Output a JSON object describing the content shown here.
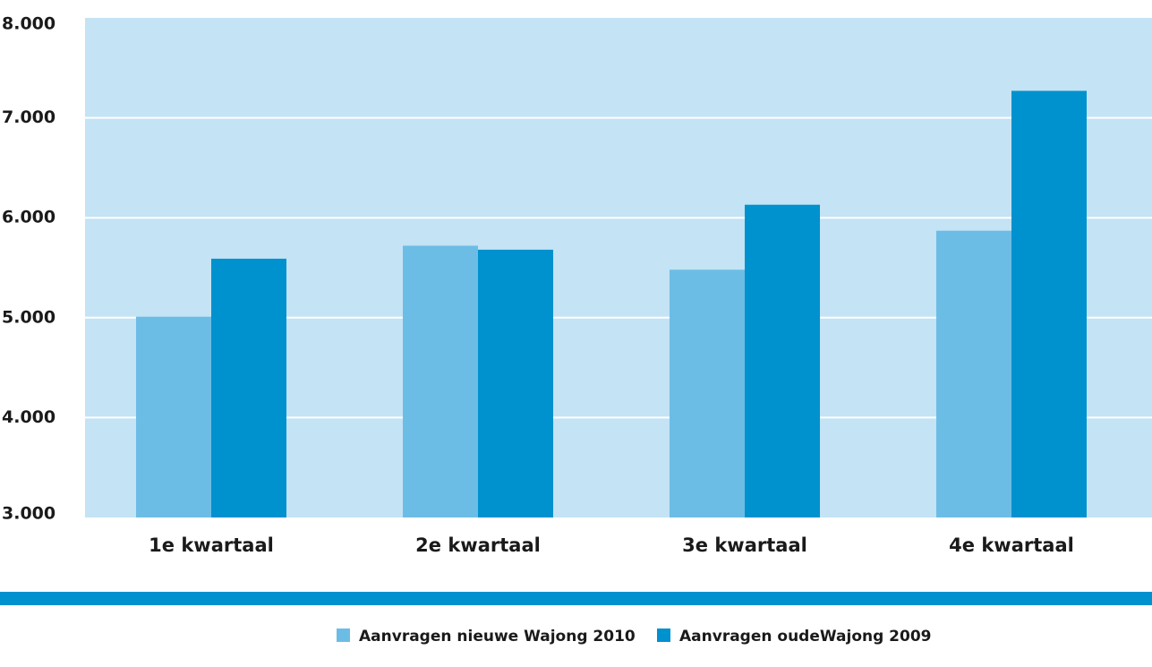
{
  "chart_data": {
    "type": "bar",
    "title": "",
    "xlabel": "",
    "ylabel": "",
    "categories": [
      "1e kwartaal",
      "2e kwartaal",
      "3e kwartaal",
      "4e kwartaal"
    ],
    "series": [
      {
        "name": "Aanvragen nieuwe Wajong 2010",
        "color": "#6cbde6",
        "values": [
          5010,
          5720,
          5480,
          5870
        ]
      },
      {
        "name": "Aanvragen oudeWajong 2009",
        "color": "#0091cf",
        "values": [
          5590,
          5680,
          6130,
          7270
        ]
      }
    ],
    "ylim": [
      3000,
      8000
    ],
    "yticks": [
      3000,
      4000,
      5000,
      6000,
      7000,
      8000
    ],
    "ytick_labels": [
      "3.000",
      "4.000",
      "5.000",
      "6.000",
      "7.000",
      "8.000"
    ],
    "grid": true,
    "legend": "bottom-center",
    "colors": {
      "plot_background": "#c4e3f4",
      "gridline": "#ffffff",
      "separator": "#0091cf"
    }
  }
}
